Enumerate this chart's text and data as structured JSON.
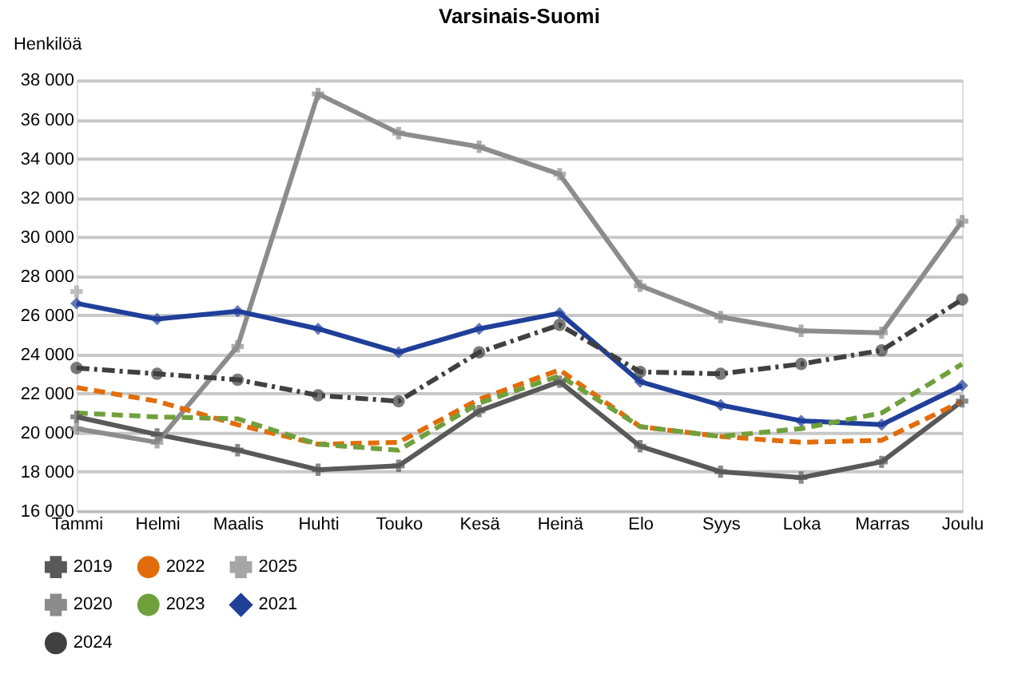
{
  "chart_data": {
    "type": "line",
    "title": "Varsinais-Suomi",
    "ylabel": "Henkilöä",
    "categories": [
      "Tammi",
      "Helmi",
      "Maalis",
      "Huhti",
      "Touko",
      "Kesä",
      "Heinä",
      "Elo",
      "Syys",
      "Loka",
      "Marras",
      "Joulu"
    ],
    "ylim": [
      16000,
      38000
    ],
    "yticks": [
      {
        "value": 16000,
        "label": "16 000"
      },
      {
        "value": 18000,
        "label": "18 000"
      },
      {
        "value": 20000,
        "label": "20 000"
      },
      {
        "value": 22000,
        "label": "22 000"
      },
      {
        "value": 24000,
        "label": "24 000"
      },
      {
        "value": 26000,
        "label": "26 000"
      },
      {
        "value": 28000,
        "label": "28 000"
      },
      {
        "value": 30000,
        "label": "30 000"
      },
      {
        "value": 32000,
        "label": "32 000"
      },
      {
        "value": 34000,
        "label": "34 000"
      },
      {
        "value": 36000,
        "label": "36 000"
      },
      {
        "value": 38000,
        "label": "38 000"
      }
    ],
    "grid": "y",
    "legend": "bottom left",
    "series": [
      {
        "name": "2019",
        "color": "#595959",
        "marker": "cross",
        "line_style": "solid",
        "values": [
          20800,
          19900,
          19100,
          18100,
          18300,
          21100,
          22600,
          19300,
          18000,
          17700,
          18500,
          21600
        ]
      },
      {
        "name": "2020",
        "color": "#8c8c8c",
        "marker": "cross",
        "line_style": "solid",
        "values": [
          20200,
          19500,
          24400,
          37300,
          35300,
          34600,
          33200,
          27500,
          25900,
          25200,
          25100,
          30800
        ]
      },
      {
        "name": "2021",
        "color": "#1f3f99",
        "marker": "diamond",
        "line_style": "solid",
        "values": [
          26600,
          25800,
          26200,
          25300,
          24100,
          25300,
          26100,
          22600,
          21400,
          20600,
          20400,
          22400
        ]
      },
      {
        "name": "2022",
        "color": "#e36c0a",
        "marker": "none",
        "line_style": "dashed",
        "values": [
          22300,
          21600,
          20400,
          19400,
          19500,
          21700,
          23200,
          20300,
          19800,
          19500,
          19600,
          21600
        ]
      },
      {
        "name": "2023",
        "color": "#70a03c",
        "marker": "none",
        "line_style": "dashed",
        "values": [
          21000,
          20800,
          20700,
          19400,
          19100,
          21500,
          22900,
          20300,
          19800,
          20200,
          21000,
          23500
        ]
      },
      {
        "name": "2024",
        "color": "#404040",
        "marker": "circle",
        "line_style": "dashdot",
        "values": [
          23300,
          23000,
          22700,
          21900,
          21600,
          24100,
          25500,
          23100,
          23000,
          23500,
          24200,
          26800
        ]
      },
      {
        "name": "2025",
        "color": "#a6a6a6",
        "marker": "cross",
        "line_style": "solid",
        "values": [
          27200,
          null,
          null,
          null,
          null,
          null,
          null,
          null,
          null,
          null,
          null,
          null
        ]
      }
    ]
  }
}
